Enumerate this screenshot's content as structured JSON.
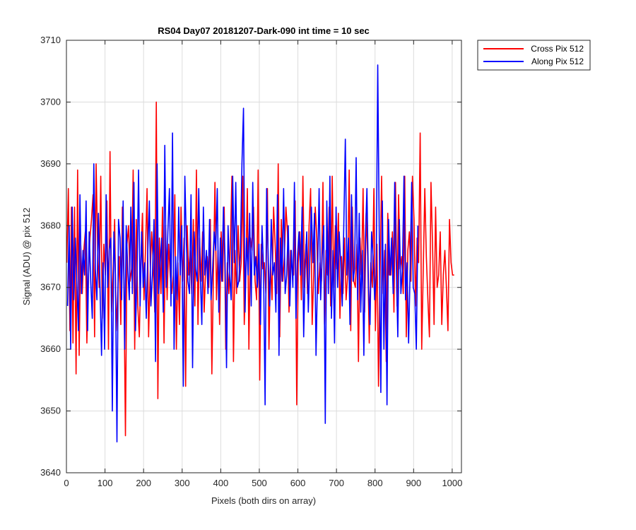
{
  "chart_data": {
    "type": "line",
    "title": "RS04 Day07 20181207-Dark-090 int time = 10 sec",
    "xlabel": "Pixels (both dirs on array)",
    "ylabel": "Signal (ADU) @ pix 512",
    "xlim": [
      0,
      1024
    ],
    "ylim": [
      3640,
      3710
    ],
    "xticks": [
      0,
      100,
      200,
      300,
      400,
      500,
      600,
      700,
      800,
      900,
      1000
    ],
    "yticks": [
      3640,
      3650,
      3660,
      3670,
      3680,
      3690,
      3700,
      3710
    ],
    "grid": true,
    "legend_position": "outside-top-right",
    "series": [
      {
        "name": "Cross Pix 512",
        "color": "#ff0000",
        "x_start": 1,
        "x_step": 4,
        "values": [
          3674,
          3686,
          3663,
          3683,
          3661,
          3683,
          3656,
          3689,
          3659,
          3677,
          3669,
          3676,
          3679,
          3661,
          3672,
          3678,
          3681,
          3685,
          3662,
          3690,
          3676,
          3670,
          3688,
          3665,
          3677,
          3672,
          3684,
          3660,
          3692,
          3666,
          3673,
          3681,
          3663,
          3669,
          3675,
          3664,
          3683,
          3671,
          3646,
          3677,
          3680,
          3671,
          3673,
          3689,
          3660,
          3681,
          3667,
          3662,
          3674,
          3682,
          3668,
          3676,
          3686,
          3662,
          3672,
          3679,
          3674,
          3666,
          3700,
          3652,
          3678,
          3669,
          3683,
          3661,
          3680,
          3668,
          3677,
          3672,
          3669,
          3672,
          3685,
          3660,
          3674,
          3664,
          3683,
          3671,
          3678,
          3654,
          3680,
          3672,
          3676,
          3669,
          3681,
          3667,
          3689,
          3664,
          3678,
          3671,
          3679,
          3666,
          3673,
          3675,
          3670,
          3681,
          3656,
          3672,
          3687,
          3668,
          3676,
          3664,
          3679,
          3671,
          3683,
          3660,
          3674,
          3669,
          3677,
          3688,
          3658,
          3676,
          3669,
          3680,
          3671,
          3674,
          3688,
          3664,
          3672,
          3686,
          3660,
          3678,
          3676,
          3683,
          3671,
          3668,
          3689,
          3655,
          3677,
          3673,
          3674,
          3669,
          3686,
          3660,
          3674,
          3668,
          3683,
          3677,
          3669,
          3690,
          3662,
          3681,
          3671,
          3675,
          3683,
          3679,
          3666,
          3676,
          3673,
          3672,
          3684,
          3651,
          3674,
          3679,
          3668,
          3688,
          3670,
          3677,
          3669,
          3680,
          3686,
          3664,
          3672,
          3683,
          3678,
          3669,
          3674,
          3671,
          3687,
          3664,
          3676,
          3672,
          3683,
          3667,
          3688,
          3670,
          3680,
          3673,
          3682,
          3665,
          3675,
          3669,
          3678,
          3668,
          3672,
          3689,
          3663,
          3683,
          3671,
          3670,
          3677,
          3658,
          3678,
          3672,
          3686,
          3666,
          3682,
          3675,
          3661,
          3674,
          3670,
          3686,
          3663,
          3677,
          3654,
          3672,
          3688,
          3669,
          3676,
          3658,
          3682,
          3672,
          3672,
          3679,
          3666,
          3687,
          3667,
          3685,
          3673,
          3675,
          3669,
          3688,
          3662,
          3676,
          3679,
          3671,
          3688,
          3681,
          3667,
          3678,
          3674,
          3695,
          3660,
          3673,
          3686,
          3675,
          3668,
          3662,
          3687,
          3677,
          3664,
          3683,
          3670,
          3672,
          3679,
          3664,
          3672,
          3676,
          3670,
          3663,
          3681,
          3674,
          3672,
          3672
        ]
      },
      {
        "name": "Along Pix 512",
        "color": "#0000ff",
        "x_start": 3,
        "x_step": 4,
        "values": [
          3667,
          3680,
          3660,
          3683,
          3668,
          3678,
          3671,
          3663,
          3685,
          3669,
          3676,
          3672,
          3684,
          3663,
          3679,
          3671,
          3665,
          3690,
          3673,
          3668,
          3682,
          3670,
          3659,
          3674,
          3660,
          3685,
          3670,
          3676,
          3678,
          3650,
          3679,
          3672,
          3645,
          3681,
          3678,
          3668,
          3684,
          3660,
          3680,
          3673,
          3668,
          3683,
          3669,
          3687,
          3663,
          3672,
          3689,
          3667,
          3679,
          3670,
          3674,
          3665,
          3676,
          3684,
          3667,
          3672,
          3681,
          3658,
          3690,
          3669,
          3674,
          3678,
          3666,
          3693,
          3670,
          3679,
          3686,
          3667,
          3695,
          3660,
          3675,
          3668,
          3683,
          3672,
          3680,
          3654,
          3688,
          3677,
          3671,
          3669,
          3685,
          3657,
          3679,
          3673,
          3671,
          3686,
          3672,
          3664,
          3683,
          3672,
          3676,
          3669,
          3681,
          3668,
          3673,
          3679,
          3676,
          3686,
          3666,
          3678,
          3671,
          3683,
          3675,
          3657,
          3680,
          3672,
          3668,
          3688,
          3674,
          3687,
          3670,
          3671,
          3676,
          3690,
          3699,
          3666,
          3678,
          3672,
          3682,
          3667,
          3687,
          3672,
          3675,
          3670,
          3677,
          3664,
          3680,
          3673,
          3651,
          3686,
          3675,
          3667,
          3681,
          3672,
          3674,
          3666,
          3685,
          3659,
          3678,
          3671,
          3686,
          3669,
          3672,
          3680,
          3667,
          3676,
          3670,
          3687,
          3665,
          3675,
          3679,
          3672,
          3683,
          3662,
          3674,
          3679,
          3666,
          3675,
          3683,
          3674,
          3682,
          3659,
          3672,
          3686,
          3668,
          3675,
          3680,
          3648,
          3684,
          3669,
          3688,
          3665,
          3676,
          3661,
          3683,
          3670,
          3679,
          3674,
          3667,
          3680,
          3694,
          3672,
          3678,
          3664,
          3685,
          3671,
          3673,
          3691,
          3668,
          3682,
          3666,
          3676,
          3659,
          3678,
          3686,
          3670,
          3664,
          3679,
          3675,
          3668,
          3672,
          3706,
          3678,
          3653,
          3684,
          3660,
          3677,
          3651,
          3681,
          3672,
          3678,
          3669,
          3687,
          3674,
          3662,
          3681,
          3669,
          3673,
          3688,
          3668,
          3674,
          3661,
          3673,
          3687,
          3670,
          3669,
          3660,
          3680
        ]
      }
    ]
  }
}
